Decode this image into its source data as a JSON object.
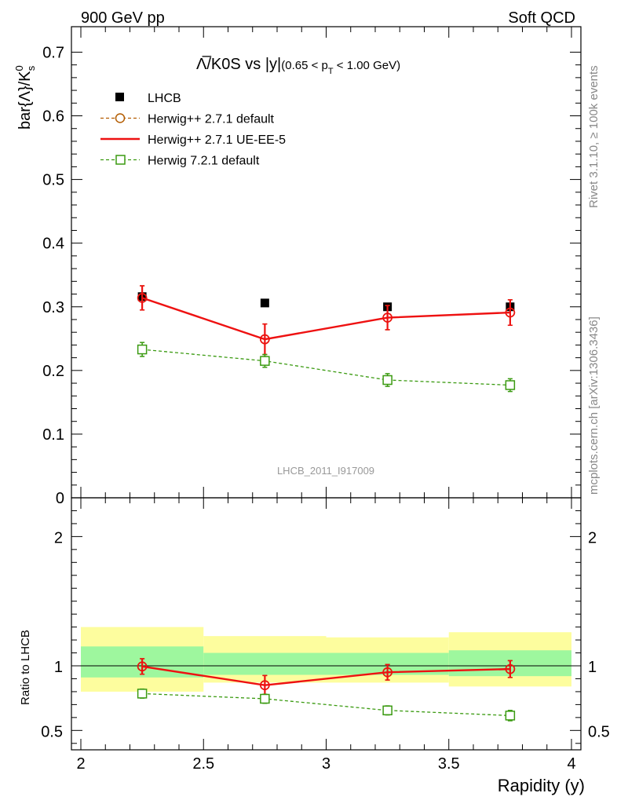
{
  "header": {
    "left": "900 GeV pp",
    "right": "Soft QCD"
  },
  "side_labels": {
    "rivet": "Rivet 3.1.10, ≥ 100k events",
    "mcplots": "mcplots.cern.ch [arXiv:1306.3436]"
  },
  "watermark": "LHCB_2011_I917009",
  "colors": {
    "data": "#000000",
    "herwigpp_default": "#b35c00",
    "herwigpp_ueee5": "#ee1111",
    "herwig7": "#3a9a10",
    "band_inner": "#9ef79e",
    "band_outer": "#fdfd9e"
  },
  "chart_data": [
    {
      "type": "scatter",
      "panel": "main",
      "title": "Λ̅/K0S vs |y|",
      "title_parts": {
        "main": "Λ̅/K0S vs |y|",
        "cut_open": "(0.65 < p",
        "cut_sub": "T",
        "cut_close": " < 1.00 GeV)"
      },
      "ylabel": "bar{Λ}/K",
      "ylabel_sup": "0",
      "ylabel_sub": "s",
      "xlim": [
        2,
        4
      ],
      "ylim": [
        0,
        0.74
      ],
      "y_ticks": [
        0,
        0.1,
        0.2,
        0.3,
        0.4,
        0.5,
        0.6,
        0.7
      ],
      "y_tick_labels": [
        "0",
        "0.1",
        "0.2",
        "0.3",
        "0.4",
        "0.5",
        "0.6",
        "0.7"
      ],
      "legend_placement": "top-left",
      "x": [
        2.25,
        2.75,
        3.25,
        3.75
      ],
      "series": [
        {
          "name": "LHCB",
          "key": "data",
          "style": "markers",
          "values": [
            0.316,
            0.306,
            0.3,
            0.3
          ],
          "errors": [
            0.004,
            0.004,
            0.004,
            0.004
          ]
        },
        {
          "name": "Herwig++ 2.7.1 default",
          "key": "herwigpp_default",
          "style": "dashed-circle",
          "values": [
            0.314,
            0.249,
            0.283,
            0.291
          ],
          "errors": [
            0.019,
            0.024,
            0.019,
            0.02
          ]
        },
        {
          "name": "Herwig++ 2.7.1 UE-EE-5",
          "key": "herwigpp_ueee5",
          "style": "solid-circle",
          "values": [
            0.314,
            0.249,
            0.283,
            0.291
          ],
          "errors": [
            0.019,
            0.024,
            0.019,
            0.02
          ]
        },
        {
          "name": "Herwig 7.2.1 default",
          "key": "herwig7",
          "style": "dashed-square",
          "values": [
            0.233,
            0.215,
            0.185,
            0.177
          ],
          "errors": [
            0.011,
            0.01,
            0.01,
            0.01
          ]
        }
      ]
    },
    {
      "type": "scatter",
      "panel": "ratio",
      "ylabel": "Ratio to LHCB",
      "xlabel": "Rapidity (y)",
      "xlim": [
        2,
        4
      ],
      "ylim": [
        0.35,
        2.3
      ],
      "y_ticks": [
        0.5,
        1,
        2
      ],
      "y_tick_labels": [
        "0.5",
        "1",
        "2"
      ],
      "x_ticks": [
        2,
        2.5,
        3,
        3.5,
        4
      ],
      "x_tick_labels": [
        "2",
        "2.5",
        "3",
        "3.5",
        "4"
      ],
      "bands": [
        {
          "x0": 2.0,
          "x1": 2.5,
          "inner": [
            0.91,
            1.15
          ],
          "outer": [
            0.8,
            1.3
          ]
        },
        {
          "x0": 2.5,
          "x1": 3.0,
          "inner": [
            0.93,
            1.1
          ],
          "outer": [
            0.87,
            1.23
          ]
        },
        {
          "x0": 3.0,
          "x1": 3.5,
          "inner": [
            0.93,
            1.1
          ],
          "outer": [
            0.87,
            1.22
          ]
        },
        {
          "x0": 3.5,
          "x1": 4.0,
          "inner": [
            0.92,
            1.12
          ],
          "outer": [
            0.84,
            1.26
          ]
        }
      ],
      "x": [
        2.25,
        2.75,
        3.25,
        3.75
      ],
      "series": [
        {
          "name": "Herwig++ 2.7.1 default",
          "key": "herwigpp_default",
          "style": "dashed-circle",
          "values": [
            0.995,
            0.85,
            0.95,
            0.975
          ],
          "errors": [
            0.06,
            0.075,
            0.06,
            0.065
          ]
        },
        {
          "name": "Herwig++ 2.7.1 UE-EE-5",
          "key": "herwigpp_ueee5",
          "style": "solid-circle",
          "values": [
            0.995,
            0.85,
            0.95,
            0.975
          ],
          "errors": [
            0.06,
            0.075,
            0.06,
            0.065
          ]
        },
        {
          "name": "Herwig 7.2.1 default",
          "key": "herwig7",
          "style": "dashed-square",
          "values": [
            0.785,
            0.745,
            0.655,
            0.615
          ],
          "errors": [
            0.035,
            0.035,
            0.035,
            0.04
          ]
        }
      ]
    }
  ]
}
